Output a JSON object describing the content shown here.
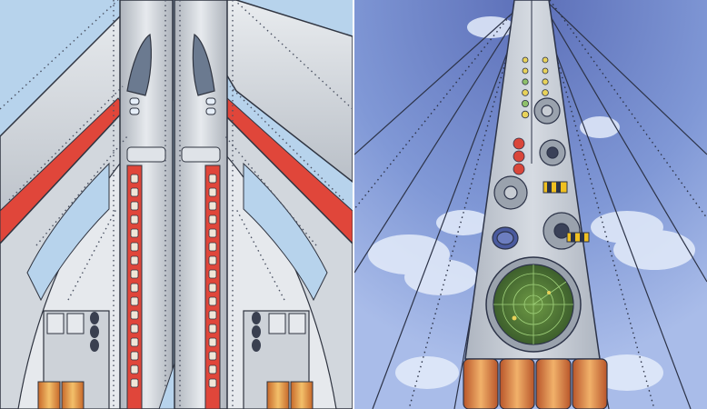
{
  "illustration": {
    "left_panel": {
      "subject": "jet-aircraft-top-view",
      "colors": {
        "sky": "#b7d3ec",
        "fuselage": "#cfd4da",
        "fuselage_shadow": "#9aa1aa",
        "outline": "#2f3440",
        "stripe": "#e0463a",
        "window": "#f0e6d8",
        "rivet": "#4b5263",
        "engine_glow": "#e8a040"
      }
    },
    "right_panel": {
      "subject": "rocket-instrument-spine",
      "colors": {
        "sky": "#7f97d4",
        "sky_light": "#aabde8",
        "cloud": "#e4ecfa",
        "spine": "#bfc6cf",
        "outline": "#2c3348",
        "radar": "#4f7a3a",
        "radar_grid": "#9fd07a",
        "dish": "#9aa2ad",
        "hazard_yellow": "#f0c020",
        "thruster": "#d46a2a",
        "light_red": "#d9463a",
        "light_yellow": "#e8d25a",
        "light_green": "#8ec06a"
      }
    }
  }
}
